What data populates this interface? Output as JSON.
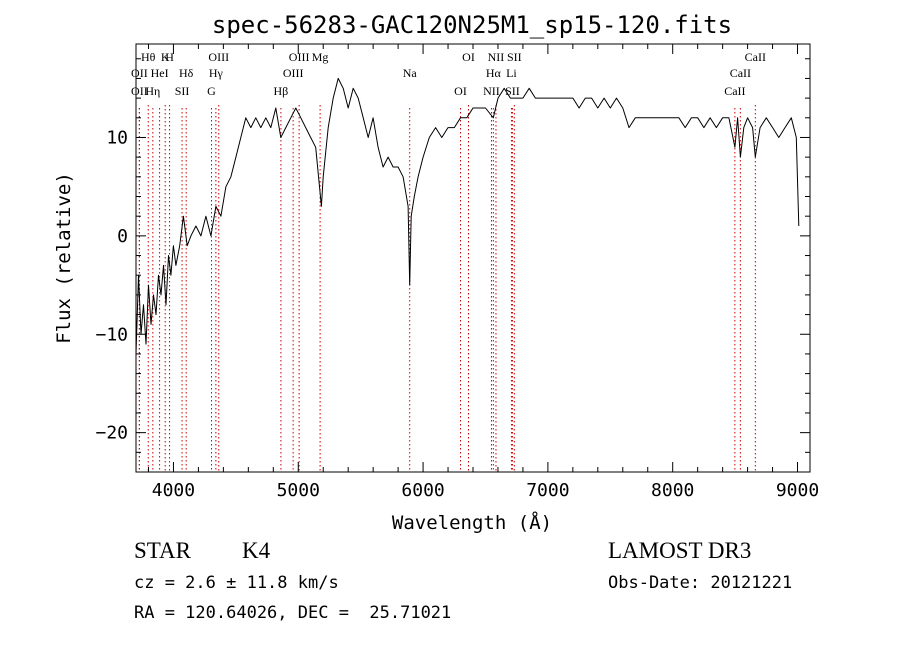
{
  "chart_data": {
    "type": "line",
    "title": "spec-56283-GAC120N25M1_sp15-120.fits",
    "xlabel": "Wavelength (Å)",
    "ylabel": "Flux (relative)",
    "xlim": [
      3700,
      9100
    ],
    "ylim": [
      -24,
      19.5
    ],
    "xticks": [
      4000,
      5000,
      6000,
      7000,
      8000,
      9000
    ],
    "yticks": [
      -20,
      -10,
      0,
      10
    ],
    "grid": false,
    "series_color": "#000000",
    "line_color": "#cc0000",
    "series": [
      {
        "values": [
          [
            3700,
            -12
          ],
          [
            3720,
            -4
          ],
          [
            3740,
            -10
          ],
          [
            3760,
            -7
          ],
          [
            3780,
            -11
          ],
          [
            3800,
            -5
          ],
          [
            3820,
            -9
          ],
          [
            3840,
            -6
          ],
          [
            3860,
            -8
          ],
          [
            3880,
            -4
          ],
          [
            3900,
            -6
          ],
          [
            3920,
            -3
          ],
          [
            3940,
            -7
          ],
          [
            3960,
            -2
          ],
          [
            3980,
            -4
          ],
          [
            4000,
            -1
          ],
          [
            4020,
            -3
          ],
          [
            4050,
            -1
          ],
          [
            4080,
            2
          ],
          [
            4110,
            -1
          ],
          [
            4140,
            0
          ],
          [
            4180,
            1
          ],
          [
            4220,
            0
          ],
          [
            4260,
            2
          ],
          [
            4300,
            0
          ],
          [
            4340,
            3
          ],
          [
            4380,
            2
          ],
          [
            4420,
            5
          ],
          [
            4460,
            6
          ],
          [
            4500,
            8
          ],
          [
            4540,
            10
          ],
          [
            4580,
            12
          ],
          [
            4620,
            11
          ],
          [
            4660,
            12
          ],
          [
            4700,
            11
          ],
          [
            4740,
            12
          ],
          [
            4780,
            11
          ],
          [
            4820,
            13
          ],
          [
            4860,
            10
          ],
          [
            4900,
            11
          ],
          [
            4940,
            12
          ],
          [
            4980,
            13
          ],
          [
            5020,
            12
          ],
          [
            5060,
            11
          ],
          [
            5100,
            10
          ],
          [
            5140,
            9
          ],
          [
            5170,
            5
          ],
          [
            5185,
            3
          ],
          [
            5200,
            6
          ],
          [
            5240,
            11
          ],
          [
            5280,
            14
          ],
          [
            5320,
            16
          ],
          [
            5360,
            15
          ],
          [
            5400,
            13
          ],
          [
            5440,
            15
          ],
          [
            5480,
            14
          ],
          [
            5520,
            12
          ],
          [
            5560,
            10
          ],
          [
            5600,
            12
          ],
          [
            5640,
            9
          ],
          [
            5680,
            7
          ],
          [
            5720,
            8
          ],
          [
            5760,
            7
          ],
          [
            5800,
            7
          ],
          [
            5840,
            6
          ],
          [
            5880,
            3
          ],
          [
            5893,
            -5
          ],
          [
            5905,
            2
          ],
          [
            5930,
            4
          ],
          [
            5960,
            6
          ],
          [
            6000,
            8
          ],
          [
            6050,
            10
          ],
          [
            6100,
            11
          ],
          [
            6150,
            10
          ],
          [
            6200,
            11
          ],
          [
            6250,
            11
          ],
          [
            6300,
            12
          ],
          [
            6350,
            12
          ],
          [
            6400,
            13
          ],
          [
            6450,
            13
          ],
          [
            6500,
            13
          ],
          [
            6563,
            12
          ],
          [
            6600,
            14
          ],
          [
            6650,
            15
          ],
          [
            6700,
            14
          ],
          [
            6750,
            14
          ],
          [
            6800,
            14
          ],
          [
            6850,
            15
          ],
          [
            6900,
            14
          ],
          [
            6950,
            14
          ],
          [
            7000,
            14
          ],
          [
            7050,
            14
          ],
          [
            7100,
            14
          ],
          [
            7150,
            14
          ],
          [
            7200,
            14
          ],
          [
            7250,
            13
          ],
          [
            7300,
            14
          ],
          [
            7350,
            14
          ],
          [
            7400,
            13
          ],
          [
            7450,
            14
          ],
          [
            7500,
            13
          ],
          [
            7550,
            14
          ],
          [
            7600,
            13
          ],
          [
            7650,
            11
          ],
          [
            7700,
            12
          ],
          [
            7750,
            12
          ],
          [
            7800,
            12
          ],
          [
            7850,
            12
          ],
          [
            7900,
            12
          ],
          [
            7950,
            12
          ],
          [
            8000,
            12
          ],
          [
            8050,
            12
          ],
          [
            8100,
            11
          ],
          [
            8150,
            12
          ],
          [
            8200,
            12
          ],
          [
            8250,
            11
          ],
          [
            8300,
            12
          ],
          [
            8350,
            11
          ],
          [
            8400,
            12
          ],
          [
            8450,
            12
          ],
          [
            8498,
            9
          ],
          [
            8520,
            12
          ],
          [
            8542,
            8
          ],
          [
            8570,
            11
          ],
          [
            8600,
            12
          ],
          [
            8640,
            11
          ],
          [
            8662,
            8
          ],
          [
            8700,
            11
          ],
          [
            8750,
            12
          ],
          [
            8800,
            11
          ],
          [
            8850,
            10
          ],
          [
            8900,
            11
          ],
          [
            8950,
            12
          ],
          [
            8990,
            10
          ],
          [
            9010,
            1
          ]
        ]
      }
    ],
    "lines": [
      {
        "label": "Hθ",
        "x": 3798
      },
      {
        "label": "OII",
        "x": 3727
      },
      {
        "label": "OII",
        "x": 3727
      },
      {
        "label": "K",
        "x": 3934
      },
      {
        "label": "HeI",
        "x": 3889
      },
      {
        "label": "Hη",
        "x": 3835
      },
      {
        "label": "H",
        "x": 3969
      },
      {
        "label": "Hδ",
        "x": 4102
      },
      {
        "label": "SII",
        "x": 4069
      },
      {
        "label": "OIII",
        "x": 4363
      },
      {
        "label": "Hγ",
        "x": 4340
      },
      {
        "label": "G",
        "x": 4305
      },
      {
        "label": "OIII",
        "x": 5007
      },
      {
        "label": "OIII",
        "x": 4959
      },
      {
        "label": "Hβ",
        "x": 4861
      },
      {
        "label": "Mg",
        "x": 5175
      },
      {
        "label": "Na",
        "x": 5893
      },
      {
        "label": "OI",
        "x": 6300
      },
      {
        "label": "OI",
        "x": 6364
      },
      {
        "label": "Hα",
        "x": 6563
      },
      {
        "label": "SII",
        "x": 6716
      },
      {
        "label": "NII",
        "x": 6584
      },
      {
        "label": "Li",
        "x": 6708
      },
      {
        "label": "NII",
        "x": 6548
      },
      {
        "label": "SII",
        "x": 6731
      },
      {
        "label": "CaII",
        "x": 8542
      },
      {
        "label": "CaII",
        "x": 8498
      },
      {
        "label": "CaII",
        "x": 8662
      }
    ]
  },
  "info": {
    "class": "STAR",
    "subclass": "K4",
    "survey": "LAMOST DR3",
    "cz": "cz = 2.6 ± 11.8 km/s",
    "obs_date": "Obs-Date: 20121221",
    "coords": "RA = 120.64026, DEC =  25.71021"
  }
}
